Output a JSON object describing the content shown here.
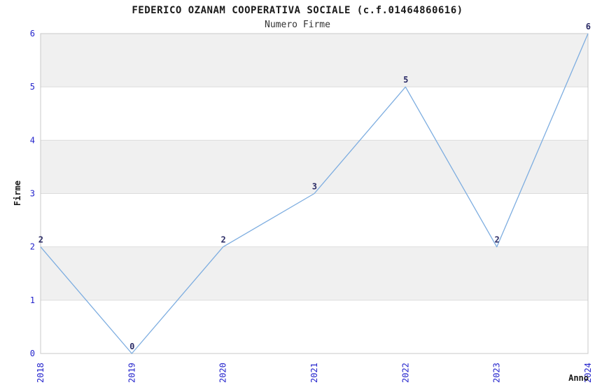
{
  "chart_data": {
    "type": "line",
    "title": "FEDERICO OZANAM COOPERATIVA SOCIALE (c.f.01464860616)",
    "subtitle": "Numero Firme",
    "xlabel": "Anno",
    "ylabel": "Firme",
    "x": [
      2018,
      2019,
      2020,
      2021,
      2022,
      2023,
      2024
    ],
    "values": [
      2,
      0,
      2,
      3,
      5,
      2,
      6
    ],
    "point_labels": [
      "2",
      "0",
      "2",
      "3",
      "5",
      "2",
      "6"
    ],
    "xlim": [
      2018,
      2024
    ],
    "ylim": [
      0,
      6
    ],
    "yticks": [
      0,
      1,
      2,
      3,
      4,
      5,
      6
    ],
    "xticks": [
      "2018",
      "2019",
      "2020",
      "2021",
      "2022",
      "2023",
      "2024"
    ],
    "xtick_rotation_deg": 90,
    "grid": "horizontal",
    "legend": "none",
    "band_fill_intervals": [
      [
        1,
        2
      ],
      [
        3,
        4
      ],
      [
        5,
        6
      ]
    ],
    "colors": {
      "line": "#7dade0",
      "tick_label": "#2424cc",
      "point_label": "#2b2b66",
      "band": "#f0f0f0",
      "band_alt": "#ffffff",
      "gridline": "#dddddd",
      "plot_border": "#c8c8c8",
      "text": "#1a1a1a"
    }
  }
}
